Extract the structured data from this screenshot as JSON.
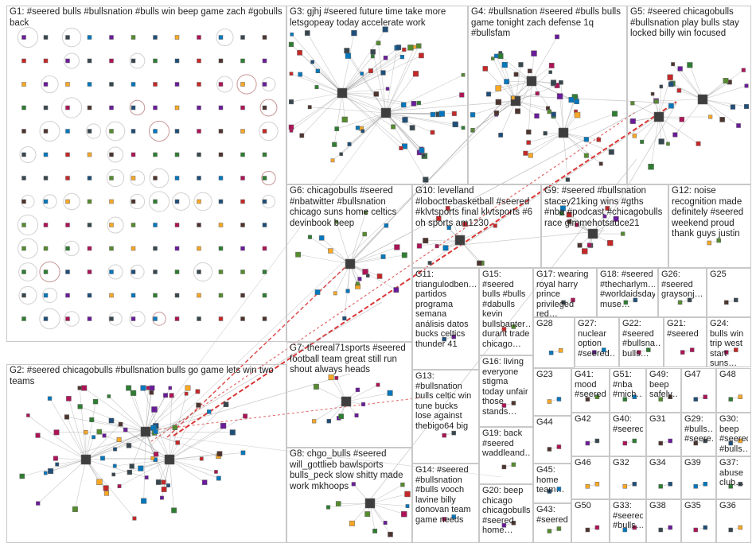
{
  "groups": [
    {
      "id": "G1",
      "label": "G1: #seered bulls #bullsnation #bulls win beep game zach #gobulls back"
    },
    {
      "id": "G2",
      "label": "G2: #seered chicagobulls #bullsnation bulls go game lets win two teams"
    },
    {
      "id": "G3",
      "label": "G3: gjhj #seered future time take more letsgopeay today accelerate work"
    },
    {
      "id": "G4",
      "label": "G4: #bullsnation #seered #bulls bulls game tonight zach defense 1q #bullsfam"
    },
    {
      "id": "G5",
      "label": "G5: #seered chicagobulls #bullsnation play bulls stay locked billy win focused"
    },
    {
      "id": "G6",
      "label": "G6: chicagobulls #seered #nbatwitter #bullsnation chicago suns home celtics devinbook beep"
    },
    {
      "id": "G7",
      "label": "G7: thereal71sports #seered football team great still run shout always heads"
    },
    {
      "id": "G8",
      "label": "G8: chgo_bulls #seered will_gottlieb bawlsports bulls_peck slow shitty made work mkhoops"
    },
    {
      "id": "G9",
      "label": "G9: #seered #bullsnation stacey21king wins #gths #nba #podcast #chicagobulls race gimmehotsauce21"
    },
    {
      "id": "G10",
      "label": "G10: levelland #lobocttebasketball #seered #klvtsports final klvtsports #6 oh sports am1230"
    },
    {
      "id": "G11",
      "label": "G11: triangulodben… partidos programa semana análisis datos bucks celtics thunder 41"
    },
    {
      "id": "G12",
      "label": "G12: noise recognition made definitely #seered weekend proud thank guys justin"
    },
    {
      "id": "G13",
      "label": "G13: #bullsnation bulls celtic win tune bucks lose against thebigo64 big"
    },
    {
      "id": "G14",
      "label": "G14: #seered #bullsnation #bulls vooch lavine billy donovan team game needs"
    },
    {
      "id": "G15",
      "label": "G15: #seered bulls #bulls #dabulls kevin bullsbanter… durant trade chicago…"
    },
    {
      "id": "G16",
      "label": "G16: living everyone stigma today unfair those stands…"
    },
    {
      "id": "G17",
      "label": "G17: wearing royal harry prince privileged red…"
    },
    {
      "id": "G18",
      "label": "G18: #seered #thecharlym… #worldaidsday muse…"
    },
    {
      "id": "G19",
      "label": "G19: back #seered waddleand…"
    },
    {
      "id": "G20",
      "label": "G20: beep chicago chicagobulls #seered home…"
    },
    {
      "id": "G21",
      "label": "G21: #seered"
    },
    {
      "id": "G22",
      "label": "G22: #seered #bullsna… bulls…"
    },
    {
      "id": "G23",
      "label": "G23"
    },
    {
      "id": "G24",
      "label": "G24: bulls win trip west start suns…"
    },
    {
      "id": "G25",
      "label": "G25"
    },
    {
      "id": "G26",
      "label": "G26: #seered graysonj…"
    },
    {
      "id": "G27",
      "label": "G27: nuclear option #seered…"
    },
    {
      "id": "G28",
      "label": "G28"
    },
    {
      "id": "G29",
      "label": "G29: #bulls… #seere…"
    },
    {
      "id": "G30",
      "label": "G30: beep #seered #bulls…"
    },
    {
      "id": "G31",
      "label": "G31"
    },
    {
      "id": "G32",
      "label": "G32"
    },
    {
      "id": "G33",
      "label": "G33: #seered #bulls…"
    },
    {
      "id": "G34",
      "label": "G34"
    },
    {
      "id": "G35",
      "label": "G35"
    },
    {
      "id": "G36",
      "label": "G36"
    },
    {
      "id": "G37",
      "label": "G37: abuse club…"
    },
    {
      "id": "G38",
      "label": "G38"
    },
    {
      "id": "G39",
      "label": "G39"
    },
    {
      "id": "G40",
      "label": "G40: #seered"
    },
    {
      "id": "G41",
      "label": "G41: mood #seered"
    },
    {
      "id": "G42",
      "label": "G42"
    },
    {
      "id": "G43",
      "label": "G43: #seered"
    },
    {
      "id": "G44",
      "label": "G44"
    },
    {
      "id": "G45",
      "label": "G45: home team…"
    },
    {
      "id": "G46",
      "label": "G46"
    },
    {
      "id": "G47",
      "label": "G47"
    },
    {
      "id": "G48",
      "label": "G48"
    },
    {
      "id": "G49",
      "label": "G49: beep safely…"
    },
    {
      "id": "G50",
      "label": "G50"
    },
    {
      "id": "G51",
      "label": "G51: #nba #mich…"
    }
  ],
  "colors": {
    "background": "#ffffff",
    "group_border": "#c8c8c8",
    "edge_gray": "#9a9a9a",
    "edge_red": "#d62020",
    "label_text": "#222222"
  }
}
